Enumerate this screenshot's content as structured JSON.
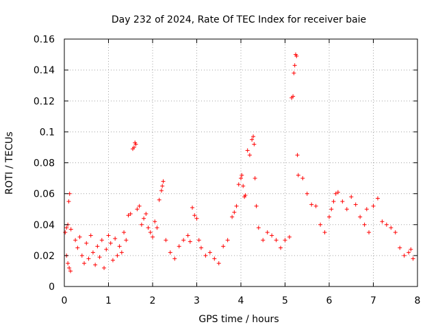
{
  "chart_data": {
    "type": "scatter",
    "title": "Day 232 of 2024, Rate Of TEC Index for receiver baie",
    "xlabel": "GPS time / hours",
    "ylabel": "ROTI / TECUs",
    "xlim": [
      0,
      8
    ],
    "ylim": [
      0,
      0.16
    ],
    "xticks": [
      0,
      1,
      2,
      3,
      4,
      5,
      6,
      7,
      8
    ],
    "yticks": [
      0,
      0.02,
      0.04,
      0.06,
      0.08,
      0.1,
      0.12,
      0.14,
      0.16
    ],
    "ytick_labels": [
      "0",
      "0.02",
      "0.04",
      "0.06",
      "0.08",
      "0.1",
      "0.12",
      "0.14",
      "0.16"
    ],
    "grid": true,
    "marker": "+",
    "color": "#ff0000",
    "series": [
      {
        "name": "ROTI",
        "x": [
          0.02,
          0.05,
          0.08,
          0.1,
          0.12,
          0.15,
          0.05,
          0.08,
          0.11,
          0.14,
          0.25,
          0.3,
          0.35,
          0.4,
          0.45,
          0.5,
          0.55,
          0.6,
          0.65,
          0.7,
          0.75,
          0.8,
          0.85,
          0.9,
          0.95,
          1.0,
          1.05,
          1.1,
          1.15,
          1.2,
          1.25,
          1.3,
          1.35,
          1.4,
          1.45,
          1.5,
          1.55,
          1.58,
          1.6,
          1.62,
          1.65,
          1.7,
          1.75,
          1.8,
          1.85,
          1.9,
          1.95,
          2.0,
          2.05,
          2.1,
          2.15,
          2.2,
          2.22,
          2.24,
          2.3,
          2.4,
          2.5,
          2.6,
          2.7,
          2.8,
          2.85,
          2.9,
          2.95,
          3.0,
          3.05,
          3.1,
          3.2,
          3.3,
          3.4,
          3.5,
          3.6,
          3.7,
          3.8,
          3.85,
          3.9,
          3.95,
          4.0,
          4.02,
          4.05,
          4.08,
          4.1,
          4.15,
          4.2,
          4.25,
          4.28,
          4.3,
          4.32,
          4.35,
          4.4,
          4.5,
          4.6,
          4.7,
          4.8,
          4.9,
          5.0,
          5.1,
          5.15,
          5.18,
          5.2,
          5.22,
          5.24,
          5.26,
          5.28,
          5.3,
          5.4,
          5.5,
          5.6,
          5.7,
          5.8,
          5.9,
          6.0,
          6.05,
          6.1,
          6.15,
          6.2,
          6.3,
          6.4,
          6.5,
          6.6,
          6.7,
          6.8,
          6.85,
          6.9,
          7.0,
          7.1,
          7.2,
          7.3,
          7.4,
          7.5,
          7.6,
          7.7,
          7.8,
          7.85,
          7.9
        ],
        "y": [
          0.035,
          0.038,
          0.04,
          0.055,
          0.06,
          0.037,
          0.02,
          0.015,
          0.012,
          0.01,
          0.03,
          0.025,
          0.032,
          0.02,
          0.015,
          0.028,
          0.018,
          0.033,
          0.022,
          0.014,
          0.026,
          0.019,
          0.03,
          0.012,
          0.024,
          0.033,
          0.028,
          0.017,
          0.031,
          0.02,
          0.026,
          0.022,
          0.035,
          0.03,
          0.046,
          0.047,
          0.089,
          0.09,
          0.093,
          0.092,
          0.05,
          0.052,
          0.04,
          0.044,
          0.047,
          0.038,
          0.035,
          0.032,
          0.042,
          0.038,
          0.056,
          0.062,
          0.065,
          0.068,
          0.03,
          0.022,
          0.018,
          0.026,
          0.03,
          0.033,
          0.029,
          0.051,
          0.046,
          0.044,
          0.03,
          0.025,
          0.02,
          0.022,
          0.018,
          0.015,
          0.026,
          0.03,
          0.045,
          0.048,
          0.052,
          0.066,
          0.07,
          0.072,
          0.065,
          0.058,
          0.059,
          0.088,
          0.085,
          0.095,
          0.097,
          0.092,
          0.07,
          0.052,
          0.038,
          0.03,
          0.035,
          0.033,
          0.03,
          0.025,
          0.03,
          0.032,
          0.122,
          0.123,
          0.138,
          0.143,
          0.15,
          0.149,
          0.085,
          0.072,
          0.07,
          0.06,
          0.053,
          0.052,
          0.04,
          0.035,
          0.045,
          0.05,
          0.055,
          0.06,
          0.061,
          0.055,
          0.05,
          0.058,
          0.053,
          0.045,
          0.04,
          0.05,
          0.035,
          0.052,
          0.057,
          0.042,
          0.04,
          0.038,
          0.035,
          0.025,
          0.02,
          0.022,
          0.024,
          0.018
        ]
      }
    ]
  }
}
